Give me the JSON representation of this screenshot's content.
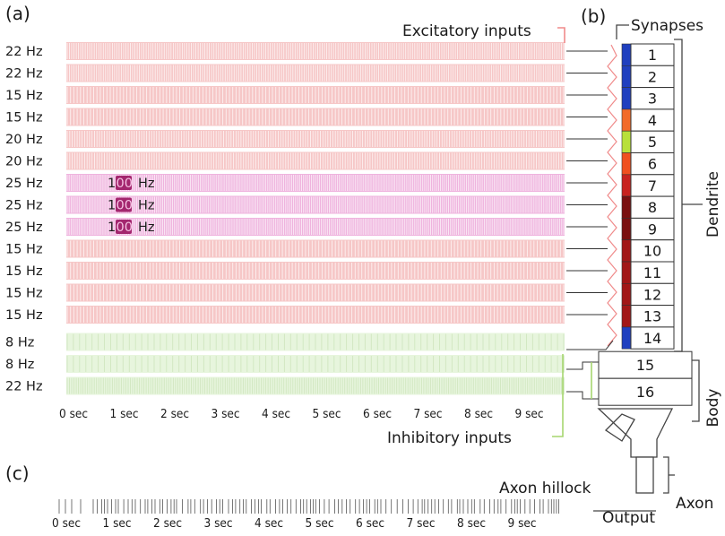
{
  "panels": {
    "a": "(a)",
    "b": "(b)",
    "c": "(c)"
  },
  "rows": [
    {
      "rate": "22 Hz",
      "type": "excitatory",
      "burst": ""
    },
    {
      "rate": "22 Hz",
      "type": "excitatory",
      "burst": ""
    },
    {
      "rate": "15 Hz",
      "type": "excitatory",
      "burst": ""
    },
    {
      "rate": "15 Hz",
      "type": "excitatory",
      "burst": ""
    },
    {
      "rate": "20 Hz",
      "type": "excitatory",
      "burst": ""
    },
    {
      "rate": "20 Hz",
      "type": "excitatory",
      "burst": ""
    },
    {
      "rate": "25 Hz",
      "type": "excitatory",
      "burst": "100 Hz"
    },
    {
      "rate": "25 Hz",
      "type": "excitatory",
      "burst": "100 Hz"
    },
    {
      "rate": "25 Hz",
      "type": "excitatory",
      "burst": "100 Hz"
    },
    {
      "rate": "15 Hz",
      "type": "excitatory",
      "burst": ""
    },
    {
      "rate": "15 Hz",
      "type": "excitatory",
      "burst": ""
    },
    {
      "rate": "15 Hz",
      "type": "excitatory",
      "burst": ""
    },
    {
      "rate": "15 Hz",
      "type": "excitatory",
      "burst": ""
    },
    {
      "rate": "8 Hz",
      "type": "inhibitory",
      "burst": ""
    },
    {
      "rate": "8 Hz",
      "type": "inhibitory",
      "burst": ""
    },
    {
      "rate": "22 Hz",
      "type": "inhibitory",
      "burst": ""
    }
  ],
  "time_ticks": [
    "0 sec",
    "1 sec",
    "2 sec",
    "3 sec",
    "4 sec",
    "5 sec",
    "6 sec",
    "7 sec",
    "8 sec",
    "9 sec"
  ],
  "labels": {
    "excitatory_inputs": "Excitatory inputs",
    "inhibitory_inputs": "Inhibitory inputs",
    "synapses": "Synapses",
    "dendrite": "Dendrite",
    "body": "Body",
    "axon_hillock": "Axon hillock",
    "axon": "Axon",
    "output": "Output"
  },
  "compartments": [
    {
      "num": "1",
      "color": "#1f3fbf"
    },
    {
      "num": "2",
      "color": "#1f3fbf"
    },
    {
      "num": "3",
      "color": "#1f3fbf"
    },
    {
      "num": "4",
      "color": "#f26b2a"
    },
    {
      "num": "5",
      "color": "#b8e03a"
    },
    {
      "num": "6",
      "color": "#f0501f"
    },
    {
      "num": "7",
      "color": "#c8231f"
    },
    {
      "num": "8",
      "color": "#7a1010"
    },
    {
      "num": "9",
      "color": "#7a1010"
    },
    {
      "num": "10",
      "color": "#a21717"
    },
    {
      "num": "11",
      "color": "#a21717"
    },
    {
      "num": "12",
      "color": "#a21717"
    },
    {
      "num": "13",
      "color": "#a21717"
    },
    {
      "num": "14",
      "color": "#1f3fbf"
    }
  ],
  "body_compartments": [
    "15",
    "16"
  ],
  "colors": {
    "excitatory_fill": "#f6c7c7",
    "excitatory_tick": "#ffffff",
    "burst_fill": "#efb3de",
    "burst_box": "#a3266e",
    "inhibitory_fill": "#e7f5dd",
    "inhibitory_tick": "#c8e2b5",
    "output_tick": "#555555",
    "inhibitory_line": "#a6d66f",
    "excitatory_line": "#f08a8a"
  }
}
